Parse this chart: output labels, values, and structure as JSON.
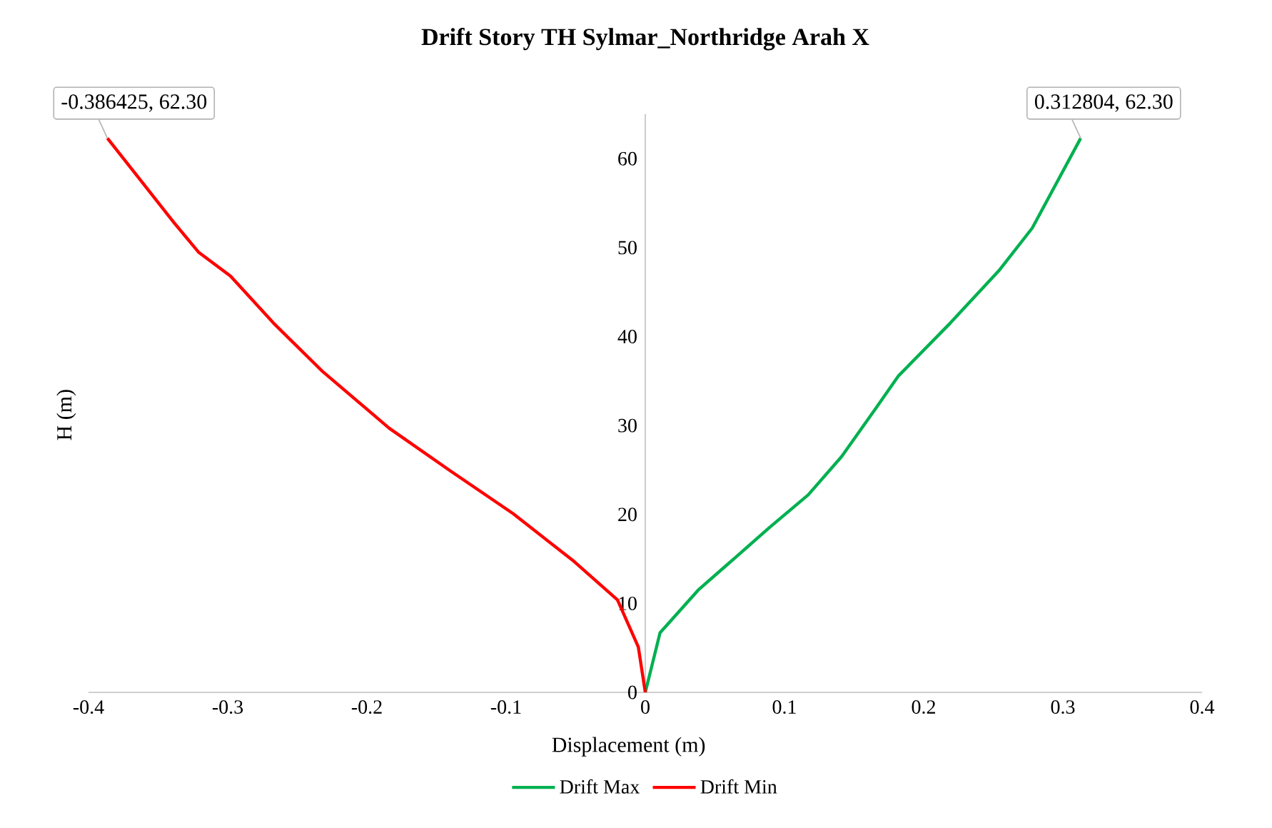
{
  "chart_data": {
    "type": "line",
    "title": "Drift Story TH Sylmar_Northridge Arah X",
    "xlabel": "Displacement (m)",
    "ylabel": "H (m)",
    "xlim": [
      -0.4,
      0.4
    ],
    "xticks": [
      -0.4,
      -0.3,
      -0.2,
      -0.1,
      0,
      0.1,
      0.2,
      0.3,
      0.4
    ],
    "ylim": [
      0,
      65
    ],
    "yticks": [
      0,
      10,
      20,
      30,
      40,
      50,
      60
    ],
    "grid": false,
    "legend": "bottom",
    "marker": "none",
    "line_style": "solid",
    "series": [
      {
        "name": "Drift Max",
        "color": "#00b050",
        "x": [
          0,
          0.0106,
          0.038,
          0.065,
          0.089,
          0.117,
          0.141,
          0.165,
          0.182,
          0.219,
          0.254,
          0.278,
          0.312804
        ],
        "values": [
          0,
          6.7,
          11.5,
          15.2,
          18.5,
          22.2,
          26.5,
          31.8,
          35.6,
          41.5,
          47.4,
          52.2,
          62.3
        ]
      },
      {
        "name": "Drift Min",
        "color": "#ff0000",
        "x": [
          0,
          -0.005,
          -0.02,
          -0.051,
          -0.095,
          -0.14,
          -0.184,
          -0.232,
          -0.267,
          -0.298,
          -0.321,
          -0.338,
          -0.386425
        ],
        "values": [
          0,
          5.1,
          10.4,
          14.7,
          20.1,
          24.9,
          29.7,
          36.1,
          41.5,
          46.8,
          49.5,
          52.7,
          62.3
        ]
      }
    ],
    "annotations": [
      {
        "text": "-0.386425, 62.30",
        "x": -0.386425,
        "y": 62.3
      },
      {
        "text": "0.312804, 62.30",
        "x": 0.312804,
        "y": 62.3
      }
    ]
  }
}
